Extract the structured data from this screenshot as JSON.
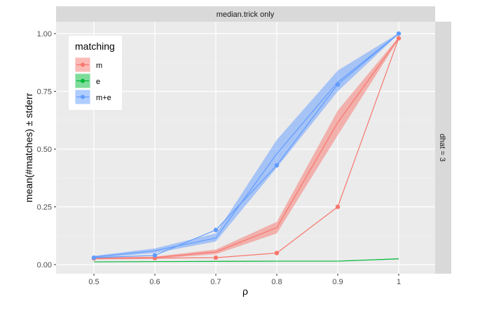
{
  "chart_data": {
    "type": "line",
    "title": "",
    "facet_top_label": "median.trick only",
    "facet_right_label": "dhat = 3",
    "xlabel": "ρ",
    "ylabel": "mean(#matches) ± stderr",
    "x": [
      0.5,
      0.6,
      0.7,
      0.8,
      0.9,
      1.0
    ],
    "x_tick_labels": [
      "0.5",
      "0.6",
      "0.7",
      "0.8",
      "0.9",
      "1"
    ],
    "xlim": [
      0.45,
      1.06
    ],
    "ylim": [
      -0.03,
      1.05
    ],
    "y_ticks": [
      0.0,
      0.25,
      0.5,
      0.75,
      1.0
    ],
    "y_tick_labels": [
      "0.00",
      "0.25",
      "0.50",
      "0.75",
      "1.00"
    ],
    "grid": true,
    "legend": {
      "title": "matching",
      "position": "inside-top-left",
      "entries": [
        "m",
        "e",
        "m+e"
      ]
    },
    "series": [
      {
        "name": "m",
        "color": "#F8766D",
        "mean": [
          0.027,
          0.03,
          0.055,
          0.16,
          0.615,
          0.98
        ],
        "ribbon_low": [
          0.022,
          0.025,
          0.045,
          0.135,
          0.56,
          0.975
        ],
        "ribbon_high": [
          0.032,
          0.035,
          0.065,
          0.185,
          0.667,
          0.985
        ],
        "points": [
          0.027,
          0.028,
          0.03,
          0.05,
          0.25,
          0.98
        ]
      },
      {
        "name": "e",
        "color": "#00BA38",
        "mean": [
          0.012,
          0.013,
          0.014,
          0.015,
          0.015,
          0.025
        ],
        "ribbon_low": [
          0.011,
          0.012,
          0.013,
          0.014,
          0.014,
          0.023
        ],
        "ribbon_high": [
          0.013,
          0.014,
          0.015,
          0.016,
          0.016,
          0.027
        ],
        "points": []
      },
      {
        "name": "m+e",
        "color": "#619CFF",
        "mean": [
          0.033,
          0.06,
          0.115,
          0.48,
          0.79,
          1.0
        ],
        "ribbon_low": [
          0.028,
          0.05,
          0.1,
          0.42,
          0.75,
          0.998
        ],
        "ribbon_high": [
          0.038,
          0.07,
          0.135,
          0.54,
          0.84,
          1.002
        ],
        "points": [
          0.03,
          0.04,
          0.15,
          0.43,
          0.78,
          1.0
        ]
      }
    ]
  }
}
